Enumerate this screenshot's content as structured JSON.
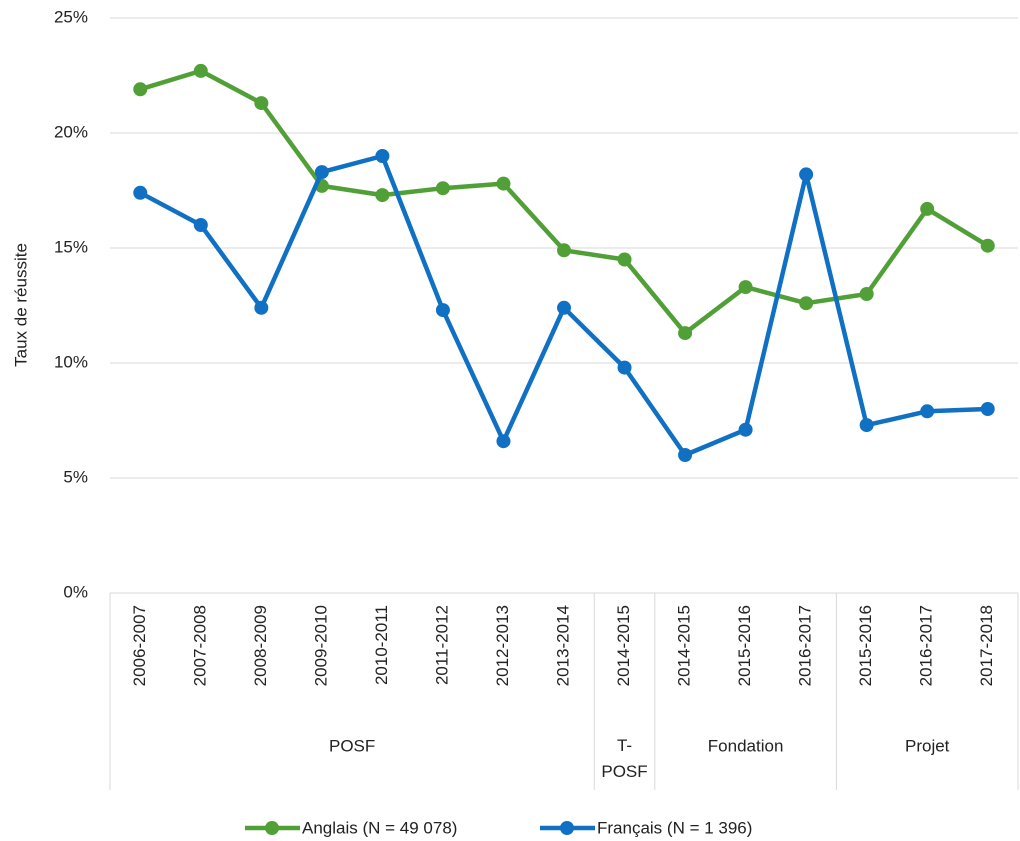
{
  "chart_data": {
    "type": "line",
    "ylabel": "Taux de réussite",
    "categories": [
      "2006-2007",
      "2007-2008",
      "2008-2009",
      "2009-2010",
      "2010-2011",
      "2011-2012",
      "2012-2013",
      "2013-2014",
      "2014-2015",
      "2014-2015",
      "2015-2016",
      "2016-2017",
      "2015-2016",
      "2016-2017",
      "2017-2018"
    ],
    "groups": [
      {
        "label": "POSF",
        "count": 8
      },
      {
        "label": "T-POSF",
        "count": 1
      },
      {
        "label": "Fondation",
        "count": 3
      },
      {
        "label": "Projet",
        "count": 3
      }
    ],
    "series": [
      {
        "name": "Anglais (N = 49 078)",
        "color": "#51a037",
        "values": [
          21.9,
          22.7,
          21.3,
          17.7,
          17.3,
          17.6,
          17.8,
          14.9,
          14.5,
          11.3,
          13.3,
          12.6,
          13.0,
          16.7,
          15.1
        ]
      },
      {
        "name": "Français (N = 1 396)",
        "color": "#1070c4",
        "values": [
          17.4,
          16.0,
          12.4,
          18.3,
          19.0,
          12.3,
          6.6,
          12.4,
          9.8,
          6.0,
          7.1,
          18.2,
          7.3,
          7.9,
          8.0
        ]
      }
    ],
    "ylim": [
      0,
      25
    ],
    "yticks": [
      {
        "value": 0,
        "label": "0%"
      },
      {
        "value": 5,
        "label": "5%"
      },
      {
        "value": 10,
        "label": "10%"
      },
      {
        "value": 15,
        "label": "15%"
      },
      {
        "value": 20,
        "label": "20%"
      },
      {
        "value": 25,
        "label": "25%"
      }
    ],
    "grid": true,
    "legend": "bottom"
  }
}
